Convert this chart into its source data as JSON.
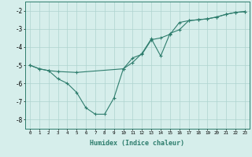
{
  "line1_x": [
    0,
    1,
    2,
    3,
    5,
    10,
    11,
    12,
    13,
    14,
    15,
    16,
    17,
    18,
    19,
    20,
    21,
    22,
    23
  ],
  "line1_y": [
    -5.0,
    -5.2,
    -5.3,
    -5.35,
    -5.4,
    -5.2,
    -4.6,
    -4.4,
    -3.6,
    -3.5,
    -3.3,
    -2.65,
    -2.55,
    -2.5,
    -2.45,
    -2.35,
    -2.2,
    -2.1,
    -2.05
  ],
  "line2_x": [
    0,
    1,
    2,
    3,
    4,
    5,
    6,
    7,
    8,
    9,
    10,
    11,
    12,
    13,
    14,
    15,
    16,
    17,
    18,
    19,
    20,
    21,
    22,
    23
  ],
  "line2_y": [
    -5.0,
    -5.2,
    -5.3,
    -5.75,
    -6.0,
    -6.5,
    -7.35,
    -7.7,
    -7.7,
    -6.8,
    -5.2,
    -4.85,
    -4.35,
    -3.55,
    -4.5,
    -3.25,
    -3.05,
    -2.55,
    -2.5,
    -2.45,
    -2.35,
    -2.2,
    -2.1,
    -2.05
  ],
  "line_color": "#2e7d6d",
  "bg_color": "#d6eeeb",
  "grid_color": "#aed4cf",
  "xlabel": "Humidex (Indice chaleur)",
  "ylim": [
    -8.5,
    -1.5
  ],
  "xlim": [
    -0.5,
    23.5
  ],
  "yticks": [
    -8,
    -7,
    -6,
    -5,
    -4,
    -3,
    -2
  ],
  "xtick_labels": [
    "0",
    "1",
    "2",
    "3",
    "4",
    "5",
    "6",
    "7",
    "8",
    "9",
    "10",
    "11",
    "12",
    "13",
    "14",
    "15",
    "16",
    "17",
    "18",
    "19",
    "20",
    "21",
    "22",
    "23"
  ],
  "marker": "+",
  "markersize": 3.5,
  "linewidth": 0.8,
  "xlabel_fontsize": 6.0,
  "ytick_fontsize": 5.5,
  "xtick_fontsize": 4.2
}
